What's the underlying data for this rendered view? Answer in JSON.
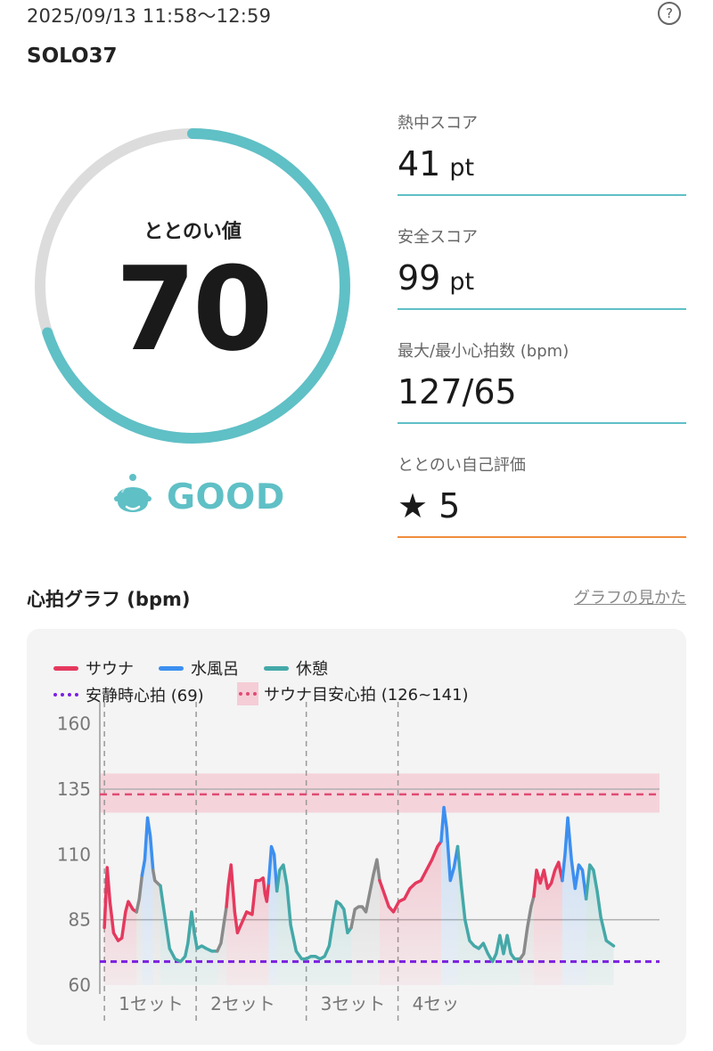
{
  "header": {
    "datetime": "2025/09/13 11:58〜12:59",
    "help": "?",
    "facility": "SOLO37"
  },
  "gauge": {
    "label": "ととのい値",
    "value": "70",
    "fraction": 0.7,
    "rating": "GOOD",
    "color_fill": "#5fc0c6",
    "color_track": "#dcdcdc"
  },
  "metrics": [
    {
      "label": "熱中スコア",
      "value": "41",
      "unit": "pt"
    },
    {
      "label": "安全スコア",
      "value": "99",
      "unit": "pt"
    },
    {
      "label": "最大/最小心拍数 (bpm)",
      "value": "127/65",
      "unit": ""
    },
    {
      "label": "ととのい自己評価",
      "value": "★ 5",
      "unit": ""
    }
  ],
  "graph": {
    "title": "心拍グラフ (bpm)",
    "link": "グラフの見かた"
  },
  "chart_data": {
    "type": "line",
    "legend": [
      {
        "name": "サウナ",
        "color": "#e5395e",
        "style": "line"
      },
      {
        "name": "水風呂",
        "color": "#3c8ff0",
        "style": "line"
      },
      {
        "name": "休憩",
        "color": "#45a8a8",
        "style": "line"
      },
      {
        "name": "安静時心拍 (69)",
        "color": "#7b1fe0",
        "style": "dotted"
      },
      {
        "name": "サウナ目安心拍 (126~141)",
        "color": "#e04b73",
        "style": "band"
      }
    ],
    "ylim": [
      60,
      165
    ],
    "yticks": [
      160,
      135,
      110,
      85,
      60
    ],
    "grid_lines": [
      135,
      85
    ],
    "resting_hr": 69,
    "target_band": [
      126,
      141
    ],
    "target_line": 133,
    "xlim": [
      0,
      61
    ],
    "set_labels": [
      "1セット",
      "2セット",
      "3セット",
      "4セッ"
    ],
    "set_label_x": [
      0.5,
      10.5,
      22.5,
      32.5
    ],
    "set_boundaries": [
      0.5,
      10.5,
      22.5,
      32.5
    ],
    "colors": {
      "sauna": "#e5395e",
      "cold": "#3c8ff0",
      "rest": "#45a8a8",
      "transition": "#8a8a8a"
    },
    "segments": [
      {
        "kind": "sauna",
        "points": [
          [
            0.5,
            82
          ],
          [
            0.8,
            105
          ],
          [
            1.1,
            92
          ],
          [
            1.5,
            80
          ],
          [
            2.0,
            77
          ],
          [
            2.4,
            78
          ],
          [
            2.8,
            88
          ],
          [
            3.1,
            92
          ],
          [
            3.6,
            89
          ],
          [
            4.0,
            88
          ]
        ]
      },
      {
        "kind": "transition",
        "points": [
          [
            4.0,
            88
          ],
          [
            4.3,
            93
          ],
          [
            4.6,
            102
          ]
        ]
      },
      {
        "kind": "cold",
        "points": [
          [
            4.6,
            102
          ],
          [
            4.9,
            108
          ],
          [
            5.2,
            124
          ],
          [
            5.5,
            117
          ],
          [
            5.8,
            104
          ]
        ]
      },
      {
        "kind": "transition",
        "points": [
          [
            5.8,
            104
          ],
          [
            6.0,
            100
          ],
          [
            6.3,
            99
          ],
          [
            6.6,
            98
          ]
        ]
      },
      {
        "kind": "rest",
        "points": [
          [
            6.6,
            98
          ],
          [
            7.1,
            86
          ],
          [
            7.6,
            74
          ],
          [
            8.2,
            70
          ],
          [
            8.8,
            69
          ],
          [
            9.3,
            71
          ],
          [
            9.6,
            76
          ],
          [
            10.0,
            88
          ],
          [
            10.3,
            80
          ],
          [
            10.6,
            74
          ],
          [
            11.1,
            75
          ],
          [
            11.6,
            74
          ],
          [
            12.2,
            73
          ],
          [
            12.8,
            73
          ]
        ]
      },
      {
        "kind": "transition",
        "points": [
          [
            12.8,
            73
          ],
          [
            13.2,
            76
          ],
          [
            13.5,
            83
          ],
          [
            13.8,
            90
          ]
        ]
      },
      {
        "kind": "sauna",
        "points": [
          [
            13.8,
            90
          ],
          [
            14.0,
            98
          ],
          [
            14.3,
            106
          ],
          [
            14.7,
            88
          ],
          [
            15.0,
            80
          ],
          [
            15.5,
            84
          ],
          [
            16.0,
            88
          ],
          [
            16.6,
            87
          ],
          [
            17.0,
            100
          ],
          [
            17.4,
            100
          ],
          [
            17.8,
            101
          ],
          [
            18.0,
            95
          ],
          [
            18.2,
            92
          ],
          [
            18.4,
            99
          ]
        ]
      },
      {
        "kind": "cold",
        "points": [
          [
            18.4,
            99
          ],
          [
            18.7,
            113
          ],
          [
            19.0,
            110
          ],
          [
            19.3,
            96
          ]
        ]
      },
      {
        "kind": "rest",
        "points": [
          [
            19.3,
            96
          ],
          [
            19.6,
            104
          ],
          [
            20.0,
            106
          ],
          [
            20.4,
            98
          ],
          [
            20.8,
            83
          ],
          [
            21.4,
            73
          ],
          [
            22.0,
            70
          ],
          [
            22.5,
            70
          ],
          [
            23.0,
            71
          ],
          [
            23.5,
            71
          ],
          [
            24.0,
            70
          ],
          [
            24.5,
            71
          ],
          [
            25.0,
            75
          ],
          [
            25.4,
            84
          ],
          [
            25.8,
            92
          ],
          [
            26.2,
            91
          ],
          [
            26.6,
            89
          ],
          [
            27.0,
            80
          ],
          [
            27.4,
            82
          ]
        ]
      },
      {
        "kind": "transition",
        "points": [
          [
            27.4,
            82
          ],
          [
            27.8,
            89
          ],
          [
            28.2,
            90
          ],
          [
            28.6,
            90
          ],
          [
            29.0,
            88
          ],
          [
            29.4,
            95
          ],
          [
            29.8,
            102
          ],
          [
            30.2,
            108
          ],
          [
            30.5,
            100
          ]
        ]
      },
      {
        "kind": "sauna",
        "points": [
          [
            30.5,
            100
          ],
          [
            31.0,
            95
          ],
          [
            31.5,
            90
          ],
          [
            32.0,
            88
          ],
          [
            32.6,
            92
          ],
          [
            33.2,
            93
          ],
          [
            33.8,
            97
          ],
          [
            34.4,
            99
          ],
          [
            35.0,
            100
          ],
          [
            35.6,
            104
          ],
          [
            36.2,
            108
          ],
          [
            36.8,
            113
          ],
          [
            37.2,
            115
          ]
        ]
      },
      {
        "kind": "cold",
        "points": [
          [
            37.2,
            115
          ],
          [
            37.5,
            128
          ],
          [
            37.8,
            120
          ],
          [
            38.2,
            100
          ],
          [
            38.6,
            105
          ],
          [
            39.0,
            113
          ]
        ]
      },
      {
        "kind": "rest",
        "points": [
          [
            39.0,
            113
          ],
          [
            39.4,
            98
          ],
          [
            39.8,
            85
          ],
          [
            40.3,
            77
          ],
          [
            40.8,
            75
          ],
          [
            41.3,
            74
          ],
          [
            41.8,
            76
          ],
          [
            42.3,
            72
          ],
          [
            42.8,
            69
          ],
          [
            43.2,
            72
          ],
          [
            43.6,
            79
          ],
          [
            44.0,
            72
          ],
          [
            44.4,
            79
          ],
          [
            44.8,
            72
          ],
          [
            45.2,
            70
          ],
          [
            45.8,
            70
          ]
        ]
      },
      {
        "kind": "transition",
        "points": [
          [
            45.8,
            70
          ],
          [
            46.2,
            72
          ],
          [
            46.6,
            82
          ],
          [
            47.0,
            90
          ],
          [
            47.3,
            94
          ]
        ]
      },
      {
        "kind": "sauna",
        "points": [
          [
            47.3,
            94
          ],
          [
            47.6,
            104
          ],
          [
            48.0,
            99
          ],
          [
            48.4,
            104
          ],
          [
            48.8,
            97
          ],
          [
            49.2,
            99
          ],
          [
            49.6,
            104
          ],
          [
            50.0,
            107
          ],
          [
            50.4,
            100
          ]
        ]
      },
      {
        "kind": "cold",
        "points": [
          [
            50.4,
            100
          ],
          [
            50.7,
            110
          ],
          [
            51.0,
            124
          ],
          [
            51.4,
            108
          ],
          [
            51.8,
            97
          ],
          [
            52.2,
            106
          ],
          [
            52.6,
            104
          ],
          [
            53.0,
            93
          ]
        ]
      },
      {
        "kind": "rest",
        "points": [
          [
            53.0,
            93
          ],
          [
            53.4,
            106
          ],
          [
            53.8,
            104
          ],
          [
            54.2,
            96
          ],
          [
            54.6,
            86
          ],
          [
            55.2,
            77
          ],
          [
            56.0,
            75
          ]
        ]
      }
    ]
  }
}
